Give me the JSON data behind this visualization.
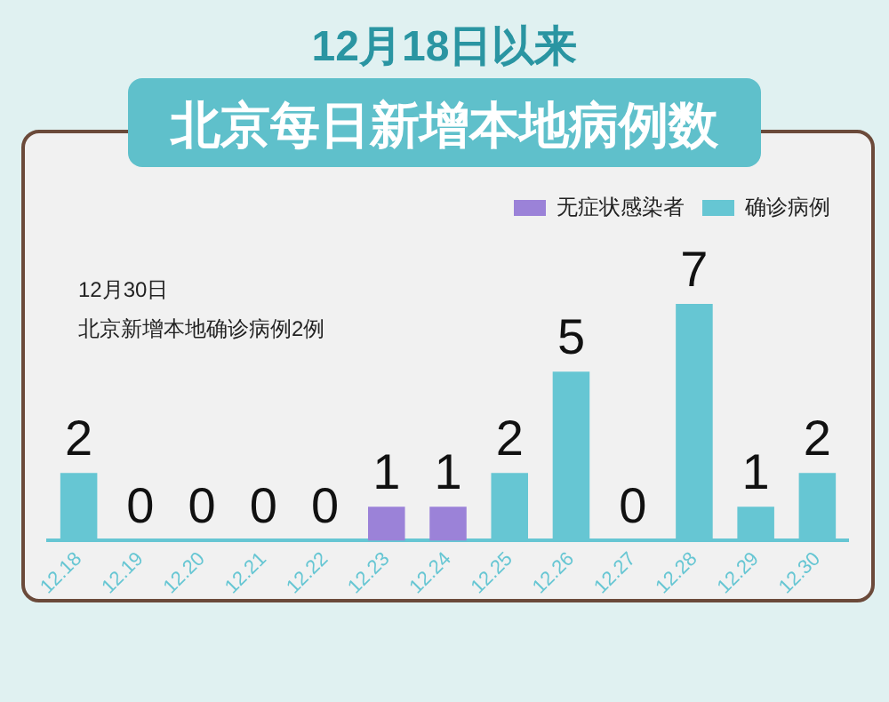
{
  "chart_data": {
    "type": "bar",
    "title": "12月18日以来",
    "subtitle": "北京每日新增本地病例数",
    "categories": [
      "12.18",
      "12.19",
      "12.20",
      "12.21",
      "12.22",
      "12.23",
      "12.24",
      "12.25",
      "12.26",
      "12.27",
      "12.28",
      "12.29",
      "12.30"
    ],
    "series": [
      {
        "name": "无症状感染者",
        "color": "#9b82d8",
        "values": [
          null,
          null,
          null,
          null,
          null,
          1,
          1,
          null,
          null,
          null,
          null,
          null,
          null
        ]
      },
      {
        "name": "确诊病例",
        "color": "#66c6d3",
        "values": [
          2,
          0,
          0,
          0,
          0,
          null,
          null,
          2,
          5,
          0,
          7,
          1,
          2
        ]
      }
    ],
    "stacked": true,
    "data_labels": true,
    "legend": "top right",
    "grid": false,
    "tick_labels": "x",
    "annotations": [
      "12月30日",
      "北京新增本地确诊病例2例"
    ]
  }
}
